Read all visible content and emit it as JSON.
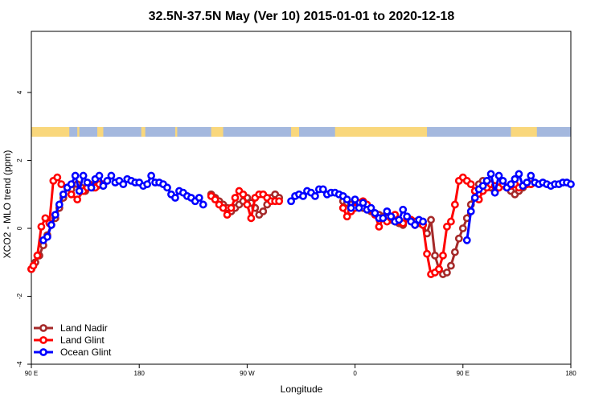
{
  "chart_data": {
    "type": "line",
    "title": "32.5N-37.5N May (Ver 10)   2015-01-01 to 2020-12-18",
    "xlabel": "Longitude",
    "ylabel": "XCO2 - MLO trend (ppm)",
    "x_range": [
      -90,
      180
    ],
    "ylim": [
      -4,
      5.8
    ],
    "x_ticks": [
      {
        "value": -90,
        "label": "90 E"
      },
      {
        "value": -36,
        "label": "180"
      },
      {
        "value": 18,
        "label": "90 W"
      },
      {
        "value": 72,
        "label": "0"
      },
      {
        "value": 126,
        "label": "90 E"
      },
      {
        "value": 180,
        "label": "180"
      }
    ],
    "y_ticks": [
      -4,
      -2,
      0,
      2,
      4
    ],
    "grid": false,
    "legend_position": "bottom-left",
    "land_ocean_strip": {
      "ocean_color": "#a4b8de",
      "land_color": "#f9d77c",
      "land_segments": [
        [
          -90,
          -71
        ],
        [
          -67,
          -66
        ],
        [
          -57,
          -54
        ],
        [
          -35,
          -33
        ],
        [
          -18,
          -17
        ],
        [
          0,
          6
        ],
        [
          40,
          44
        ],
        [
          62,
          108
        ],
        [
          150,
          163
        ]
      ]
    },
    "series": [
      {
        "name": "Land Nadir",
        "color": "#a52a2a",
        "x": [
          -90,
          -88,
          -86,
          -84,
          -82,
          -80,
          -78,
          -76,
          -74,
          -72,
          -70,
          -67,
          -65,
          -63,
          -61,
          -59,
          -57,
          -55,
          0,
          2,
          4,
          6,
          8,
          10,
          12,
          14,
          16,
          18,
          20,
          22,
          24,
          26,
          28,
          30,
          32,
          34,
          66,
          68,
          70,
          72,
          74,
          76,
          78,
          80,
          82,
          84,
          86,
          88,
          90,
          92,
          94,
          96,
          98,
          100,
          102,
          104,
          106,
          108,
          110,
          112,
          114,
          116,
          118,
          120,
          122,
          124,
          126,
          128,
          130,
          132,
          134,
          136,
          138,
          140,
          142,
          144,
          146,
          148,
          150,
          152,
          154,
          156,
          158,
          160
        ],
        "y": [
          -1.2,
          -1.0,
          -0.8,
          -0.5,
          -0.2,
          0.1,
          0.3,
          0.6,
          0.9,
          1.2,
          1.15,
          1.3,
          1.2,
          1.1,
          1.3,
          1.2,
          1.25,
          1.3,
          1.0,
          0.9,
          0.8,
          0.7,
          0.6,
          0.5,
          0.6,
          0.7,
          0.8,
          0.9,
          0.75,
          0.6,
          0.4,
          0.5,
          0.7,
          0.9,
          1.0,
          0.9,
          0.8,
          0.75,
          0.7,
          0.65,
          0.6,
          0.6,
          0.55,
          0.5,
          0.45,
          0.4,
          0.35,
          0.3,
          0.25,
          0.2,
          0.15,
          0.1,
          0.3,
          0.25,
          0.2,
          0.15,
          0.1,
          -0.15,
          0.25,
          -0.8,
          -1.2,
          -1.35,
          -1.3,
          -1.1,
          -0.7,
          -0.3,
          0.0,
          0.3,
          0.7,
          1.1,
          1.3,
          1.4,
          1.3,
          1.2,
          1.1,
          1.2,
          1.3,
          1.2,
          1.1,
          1.0,
          1.1,
          1.2,
          1.3,
          1.3
        ]
      },
      {
        "name": "Land Glint",
        "color": "#ff0000",
        "x": [
          -90,
          -89,
          -87,
          -85,
          -83,
          -81,
          -79,
          -77,
          -75,
          -72,
          -70,
          -67,
          -64,
          -62,
          -60,
          -58,
          -56,
          -54,
          0,
          2,
          4,
          6,
          8,
          10,
          12,
          14,
          16,
          18,
          20,
          22,
          24,
          26,
          28,
          30,
          32,
          34,
          66,
          68,
          70,
          72,
          74,
          76,
          78,
          80,
          82,
          84,
          86,
          88,
          90,
          92,
          94,
          96,
          98,
          100,
          102,
          104,
          106,
          108,
          110,
          112,
          114,
          116,
          118,
          120,
          122,
          124,
          126,
          128,
          130,
          132,
          134,
          136,
          138,
          140,
          142,
          144,
          146,
          148,
          150,
          152,
          154,
          156,
          158,
          160
        ],
        "y": [
          -1.2,
          -1.1,
          -0.8,
          0.05,
          0.3,
          0.15,
          1.4,
          1.5,
          1.3,
          1.2,
          1.0,
          0.85,
          1.1,
          1.2,
          1.25,
          1.2,
          1.3,
          1.3,
          0.95,
          0.85,
          0.7,
          0.6,
          0.4,
          0.6,
          0.9,
          1.1,
          1.0,
          0.7,
          0.3,
          0.9,
          1.0,
          1.0,
          0.9,
          0.8,
          0.8,
          0.8,
          0.6,
          0.35,
          0.5,
          0.6,
          0.75,
          0.8,
          0.7,
          0.55,
          0.4,
          0.05,
          0.3,
          0.2,
          0.3,
          0.4,
          0.2,
          0.15,
          0.3,
          0.25,
          0.1,
          0.2,
          0.1,
          -0.75,
          -1.35,
          -1.3,
          -1.2,
          -0.8,
          0.05,
          0.2,
          0.7,
          1.4,
          1.5,
          1.4,
          1.3,
          1.1,
          0.85,
          1.1,
          1.2,
          1.3,
          1.25,
          1.2,
          1.3,
          1.2,
          1.25,
          1.3,
          1.2,
          1.25,
          1.3,
          1.3
        ]
      },
      {
        "name": "Ocean Glint",
        "color": "#0000ff",
        "x": [
          -84,
          -82,
          -80,
          -78,
          -76,
          -74,
          -72,
          -70,
          -68,
          -66,
          -64,
          -62,
          -60,
          -58,
          -56,
          -54,
          -52,
          -50,
          -48,
          -46,
          -44,
          -42,
          -40,
          -38,
          -36,
          -34,
          -32,
          -30,
          -28,
          -26,
          -24,
          -22,
          -20,
          -18,
          -16,
          -14,
          -12,
          -10,
          -8,
          -6,
          -4,
          40,
          42,
          44,
          46,
          48,
          50,
          52,
          54,
          56,
          58,
          60,
          62,
          64,
          66,
          68,
          70,
          72,
          74,
          76,
          78,
          80,
          82,
          84,
          86,
          88,
          90,
          92,
          94,
          96,
          98,
          100,
          102,
          104,
          106,
          128,
          130,
          132,
          134,
          136,
          138,
          140,
          142,
          144,
          146,
          148,
          150,
          152,
          154,
          156,
          158,
          160,
          162,
          164,
          166,
          168,
          170,
          172,
          174,
          176,
          178,
          180
        ],
        "y": [
          -0.35,
          -0.25,
          0.1,
          0.4,
          0.7,
          1.0,
          1.2,
          1.3,
          1.55,
          1.1,
          1.55,
          1.35,
          1.2,
          1.45,
          1.55,
          1.25,
          1.4,
          1.55,
          1.35,
          1.4,
          1.3,
          1.45,
          1.4,
          1.35,
          1.35,
          1.25,
          1.3,
          1.55,
          1.35,
          1.35,
          1.3,
          1.2,
          1.0,
          0.9,
          1.1,
          1.05,
          0.95,
          0.9,
          0.8,
          0.9,
          0.7,
          0.8,
          0.95,
          1.0,
          0.95,
          1.1,
          1.05,
          0.95,
          1.15,
          1.15,
          1.0,
          1.05,
          1.05,
          1.0,
          0.95,
          0.85,
          0.6,
          0.85,
          0.6,
          0.75,
          0.55,
          0.6,
          0.45,
          0.3,
          0.3,
          0.5,
          0.35,
          0.2,
          0.25,
          0.55,
          0.35,
          0.2,
          0.1,
          0.25,
          0.2,
          -0.35,
          0.5,
          0.9,
          1.15,
          1.25,
          1.4,
          1.6,
          1.05,
          1.55,
          1.4,
          1.2,
          1.3,
          1.45,
          1.6,
          1.25,
          1.35,
          1.55,
          1.35,
          1.3,
          1.35,
          1.3,
          1.25,
          1.3,
          1.3,
          1.35,
          1.35,
          1.3
        ]
      }
    ]
  }
}
